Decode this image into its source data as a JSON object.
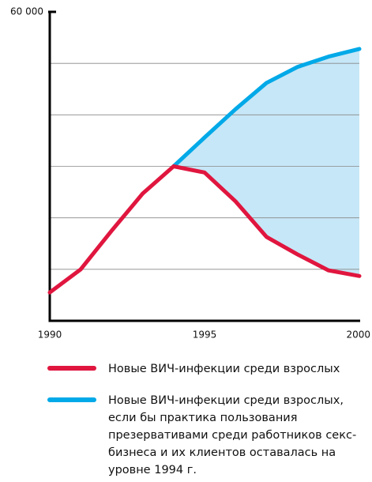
{
  "chart_data": {
    "type": "line",
    "x": [
      1990,
      1991,
      1992,
      1993,
      1994,
      1995,
      1996,
      1997,
      1998,
      1999,
      2000
    ],
    "series": [
      {
        "name": "Новые ВИЧ-инфекции среди взрослых",
        "color": "#e0163f",
        "values": [
          5500,
          10000,
          17500,
          24700,
          30000,
          28800,
          23200,
          16300,
          12900,
          9800,
          8700
        ]
      },
      {
        "name": "Новые ВИЧ-инфекции среди взрослых, если бы практика пользования презервативами среди работников секс-бизнеса и их клиентов оставалась на уровне 1994 г.",
        "color": "#00a9e8",
        "values": [
          null,
          null,
          null,
          null,
          30000,
          35600,
          41100,
          46200,
          49300,
          51300,
          52800
        ]
      }
    ],
    "fill_color": "#c6e7f7",
    "xlim": [
      1990,
      2000
    ],
    "xticks": [
      1990,
      1995,
      2000
    ],
    "ylim": [
      0,
      60000
    ],
    "yticks": [
      {
        "value": 60000,
        "label": "60 000"
      }
    ],
    "ygrid": [
      10000,
      20000,
      30000,
      40000,
      50000
    ]
  }
}
